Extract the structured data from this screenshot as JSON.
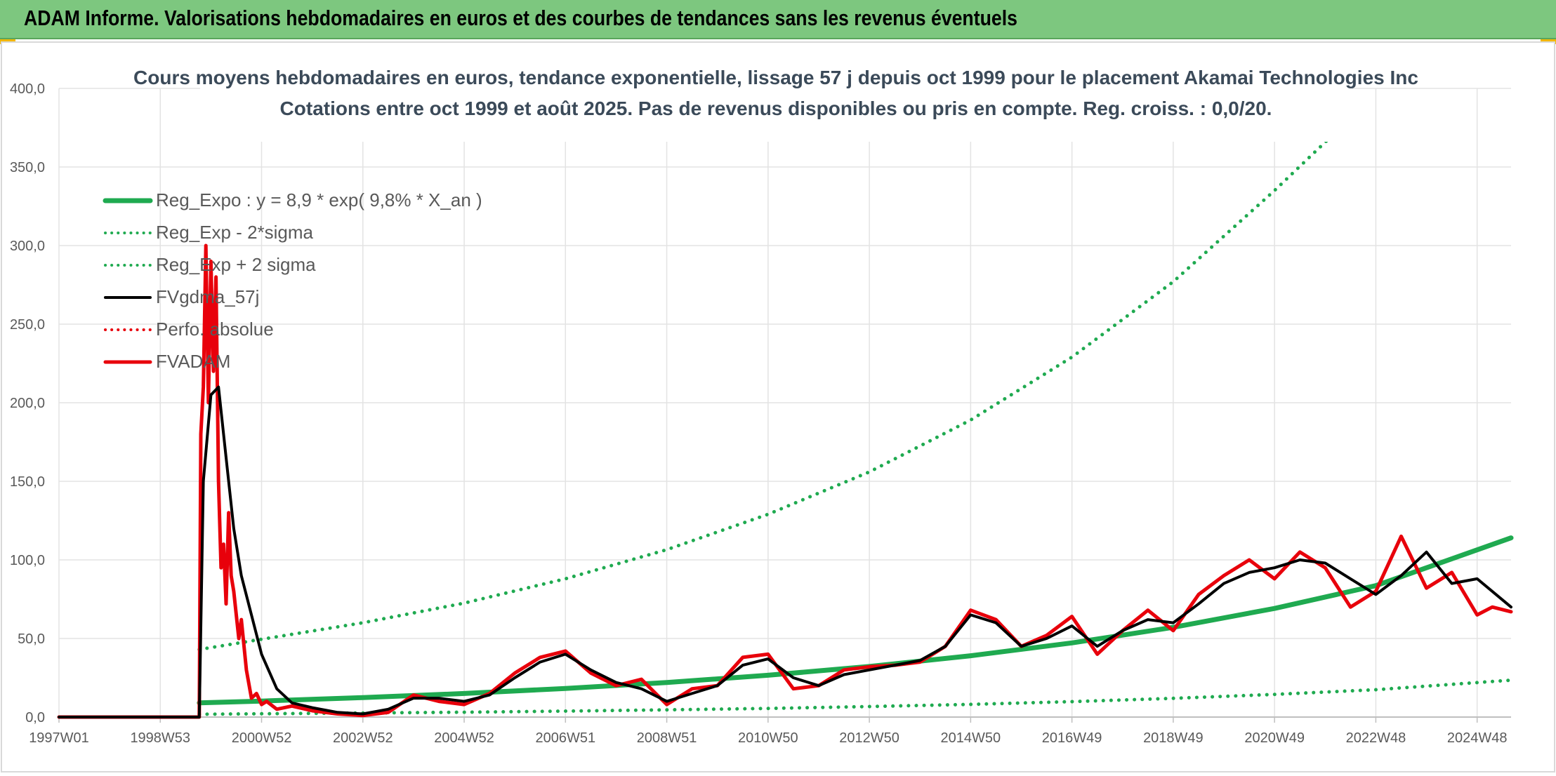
{
  "header": {
    "title": "ADAM Informe. Valorisations hebdomadaires en euros et des courbes de tendances sans les revenus éventuels"
  },
  "chart_data": {
    "type": "line",
    "title": "Cours moyens hebdomadaires en euros, tendance exponentielle, lissage 57 j depuis oct 1999 pour le placement Akamai Technologies Inc",
    "subtitle": "Cotations entre oct 1999 et août 2025. Pas de revenus disponibles ou pris en compte. Reg. croiss. : 0,0/20.",
    "xlabel": "",
    "ylabel": "",
    "ylim": [
      0,
      400
    ],
    "xlim": [
      1997.0,
      2025.67
    ],
    "grid": true,
    "legend_position": "top-left",
    "y_ticks": [
      "0,0",
      "50,0",
      "100,0",
      "150,0",
      "200,0",
      "250,0",
      "300,0",
      "350,0",
      "400,0"
    ],
    "x_ticks": [
      {
        "label": "1997W01",
        "x": 1997.0
      },
      {
        "label": "1998W53",
        "x": 1999.0
      },
      {
        "label": "2000W52",
        "x": 2001.0
      },
      {
        "label": "2002W52",
        "x": 2003.0
      },
      {
        "label": "2004W52",
        "x": 2005.0
      },
      {
        "label": "2006W51",
        "x": 2007.0
      },
      {
        "label": "2008W51",
        "x": 2009.0
      },
      {
        "label": "2010W50",
        "x": 2011.0
      },
      {
        "label": "2012W50",
        "x": 2013.0
      },
      {
        "label": "2014W50",
        "x": 2015.0
      },
      {
        "label": "2016W49",
        "x": 2017.0
      },
      {
        "label": "2018W49",
        "x": 2019.0
      },
      {
        "label": "2020W49",
        "x": 2021.0
      },
      {
        "label": "2022W48",
        "x": 2023.0
      },
      {
        "label": "2024W48",
        "x": 2025.0
      }
    ],
    "series": [
      {
        "name": "Reg_Expo : y = 8,9 * exp( 9,8% *  X_an )",
        "color": "#1faa50",
        "style": "solid",
        "width": 7,
        "x": [
          1999.77,
          2001,
          2003,
          2005,
          2007,
          2009,
          2011,
          2013,
          2015,
          2017,
          2019,
          2021,
          2023,
          2025.67
        ],
        "values": [
          9.0,
          10.2,
          12.4,
          15.0,
          18.2,
          22.0,
          26.6,
          32.2,
          39.0,
          47.2,
          57.1,
          69.1,
          83.6,
          114.0
        ]
      },
      {
        "name": "Reg_Exp - 2*sigma",
        "color": "#1faa50",
        "style": "dotted",
        "width": 5,
        "x": [
          1999.77,
          2001,
          2003,
          2005,
          2007,
          2009,
          2011,
          2013,
          2015,
          2017,
          2019,
          2021,
          2023,
          2025.67
        ],
        "values": [
          1.8,
          2.1,
          2.6,
          3.1,
          3.8,
          4.6,
          5.5,
          6.7,
          8.1,
          9.8,
          11.9,
          14.4,
          17.4,
          23.5
        ]
      },
      {
        "name": "Reg_Exp + 2 sigma",
        "color": "#1faa50",
        "style": "dotted",
        "width": 5,
        "x": [
          1999.77,
          2001,
          2003,
          2005,
          2007,
          2009,
          2011,
          2013,
          2015,
          2017,
          2019,
          2021,
          2022.3
        ],
        "values": [
          43.0,
          49.5,
          60.0,
          72.5,
          88.0,
          106.5,
          129.0,
          156.0,
          189.0,
          229.0,
          277.0,
          335.0,
          375.0
        ]
      },
      {
        "name": "FVgdma_57j",
        "color": "#000000",
        "style": "solid",
        "width": 4,
        "x": [
          1997.0,
          1999.77,
          1999.85,
          2000.0,
          2000.15,
          2000.3,
          2000.45,
          2000.6,
          2000.8,
          2001.0,
          2001.3,
          2001.6,
          2002.0,
          2002.5,
          2003.0,
          2003.5,
          2004.0,
          2004.5,
          2005.0,
          2005.5,
          2006.0,
          2006.5,
          2007.0,
          2007.5,
          2008.0,
          2008.5,
          2009.0,
          2009.5,
          2010.0,
          2010.5,
          2011.0,
          2011.5,
          2012.0,
          2012.5,
          2013.0,
          2013.5,
          2014.0,
          2014.5,
          2015.0,
          2015.5,
          2016.0,
          2016.5,
          2017.0,
          2017.5,
          2018.0,
          2018.5,
          2019.0,
          2019.5,
          2020.0,
          2020.5,
          2021.0,
          2021.5,
          2022.0,
          2022.5,
          2023.0,
          2023.5,
          2024.0,
          2024.5,
          2025.0,
          2025.67
        ],
        "values": [
          0,
          0,
          150,
          205,
          210,
          165,
          120,
          90,
          65,
          40,
          18,
          9,
          6,
          3,
          2,
          5,
          12,
          12,
          10,
          14,
          25,
          35,
          40,
          30,
          22,
          18,
          10,
          15,
          20,
          33,
          37,
          25,
          20,
          27,
          30,
          33,
          36,
          45,
          65,
          60,
          45,
          50,
          58,
          45,
          55,
          62,
          60,
          72,
          85,
          92,
          95,
          100,
          98,
          88,
          78,
          90,
          105,
          85,
          88,
          70
        ]
      },
      {
        "name": "Perfo. absolue",
        "color": "#e8000b",
        "style": "dotted",
        "width": 3,
        "x": [],
        "values": []
      },
      {
        "name": "FVADAM",
        "color": "#e8000b",
        "style": "solid",
        "width": 5,
        "x": [
          1997.0,
          1999.77,
          1999.8,
          1999.85,
          1999.9,
          1999.95,
          2000.0,
          2000.05,
          2000.1,
          2000.15,
          2000.2,
          2000.25,
          2000.3,
          2000.35,
          2000.4,
          2000.45,
          2000.5,
          2000.55,
          2000.6,
          2000.7,
          2000.8,
          2000.9,
          2001.0,
          2001.1,
          2001.3,
          2001.6,
          2002.0,
          2002.5,
          2003.0,
          2003.5,
          2004.0,
          2004.5,
          2005.0,
          2005.5,
          2006.0,
          2006.5,
          2007.0,
          2007.5,
          2008.0,
          2008.5,
          2009.0,
          2009.5,
          2010.0,
          2010.5,
          2011.0,
          2011.5,
          2012.0,
          2012.5,
          2013.0,
          2013.5,
          2014.0,
          2014.5,
          2015.0,
          2015.5,
          2016.0,
          2016.5,
          2017.0,
          2017.5,
          2018.0,
          2018.5,
          2019.0,
          2019.5,
          2020.0,
          2020.5,
          2021.0,
          2021.5,
          2022.0,
          2022.5,
          2023.0,
          2023.5,
          2024.0,
          2024.5,
          2025.0,
          2025.3,
          2025.67
        ],
        "values": [
          0,
          0,
          180,
          210,
          300,
          200,
          290,
          220,
          280,
          150,
          95,
          110,
          72,
          130,
          90,
          80,
          65,
          50,
          62,
          30,
          12,
          15,
          8,
          10,
          5,
          7,
          4,
          2,
          1,
          3,
          14,
          10,
          8,
          15,
          28,
          38,
          42,
          28,
          20,
          24,
          8,
          18,
          20,
          38,
          40,
          18,
          20,
          30,
          32,
          33,
          35,
          45,
          68,
          62,
          45,
          52,
          64,
          40,
          55,
          68,
          55,
          78,
          90,
          100,
          88,
          105,
          95,
          70,
          80,
          115,
          82,
          92,
          65,
          70,
          67
        ]
      }
    ]
  }
}
